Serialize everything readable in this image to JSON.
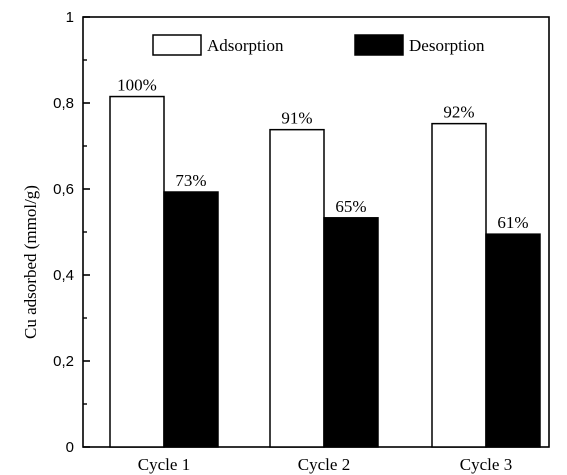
{
  "chart_data": {
    "type": "bar",
    "categories": [
      "Cycle 1",
      "Cycle 2",
      "Cycle 3"
    ],
    "series": [
      {
        "name": "Adsorption",
        "values": [
          0.815,
          0.738,
          0.752
        ],
        "labels": [
          "100%",
          "91%",
          "92%"
        ],
        "color": "#ffffff"
      },
      {
        "name": "Desorption",
        "values": [
          0.593,
          0.533,
          0.495
        ],
        "labels": [
          "73%",
          "65%",
          "61%"
        ],
        "color": "#000000"
      }
    ],
    "ylabel": "Cu adsorbed (mmol/g)",
    "xlabel": "",
    "ylim": [
      0,
      1
    ],
    "yticks": [
      "0",
      "0,2",
      "0,4",
      "0,6",
      "0,8",
      "1"
    ],
    "grid": false,
    "legend_position": "top"
  }
}
